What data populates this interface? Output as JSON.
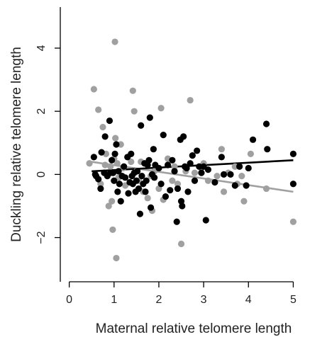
{
  "chart_data": {
    "type": "scatter",
    "title": "",
    "xlabel": "Maternal relative telomere length",
    "ylabel": "Duckling relative telomere length",
    "xlim": [
      -0.2,
      5.5
    ],
    "ylim": [
      -3.4,
      5.3
    ],
    "x_ticks": [
      0,
      1,
      2,
      3,
      4,
      5
    ],
    "y_ticks": [
      -2,
      0,
      2,
      4
    ],
    "grid": false,
    "legend": "none",
    "series": [
      {
        "color": "#000000",
        "points": [
          [
            0.55,
            0.55
          ],
          [
            0.58,
            0.0
          ],
          [
            0.6,
            -0.05
          ],
          [
            0.65,
            -0.15
          ],
          [
            0.7,
            -0.45
          ],
          [
            0.72,
            0.7
          ],
          [
            0.78,
            0.05
          ],
          [
            0.8,
            1.2
          ],
          [
            0.85,
            -0.05
          ],
          [
            0.9,
            1.7
          ],
          [
            0.92,
            0.05
          ],
          [
            0.95,
            0.45
          ],
          [
            0.98,
            0.05
          ],
          [
            1.0,
            -0.2
          ],
          [
            1.02,
            0.65
          ],
          [
            1.05,
            0.95
          ],
          [
            1.08,
            -0.55
          ],
          [
            1.1,
            0.1
          ],
          [
            1.12,
            -0.3
          ],
          [
            1.15,
            -0.85
          ],
          [
            1.18,
            -0.05
          ],
          [
            1.22,
            0.25
          ],
          [
            1.25,
            -0.1
          ],
          [
            1.3,
            0.55
          ],
          [
            1.32,
            -0.6
          ],
          [
            1.35,
            -0.25
          ],
          [
            1.38,
            0.65
          ],
          [
            1.4,
            -0.05
          ],
          [
            1.42,
            -0.3
          ],
          [
            1.45,
            0.05
          ],
          [
            1.48,
            -0.55
          ],
          [
            1.5,
            -0.2
          ],
          [
            1.52,
            0.1
          ],
          [
            1.55,
            -0.45
          ],
          [
            1.58,
            -1.25
          ],
          [
            1.6,
            1.55
          ],
          [
            1.62,
            -0.05
          ],
          [
            1.65,
            -0.3
          ],
          [
            1.68,
            0.35
          ],
          [
            1.7,
            -0.55
          ],
          [
            1.72,
            -0.2
          ],
          [
            1.75,
            0.3
          ],
          [
            1.78,
            0.45
          ],
          [
            1.8,
            1.8
          ],
          [
            1.82,
            -1.05
          ],
          [
            1.85,
            0.0
          ],
          [
            1.88,
            0.8
          ],
          [
            1.9,
            -0.1
          ],
          [
            1.92,
            0.3
          ],
          [
            2.0,
            0.2
          ],
          [
            2.05,
            -0.3
          ],
          [
            2.1,
            1.25
          ],
          [
            2.15,
            -0.7
          ],
          [
            2.2,
            0.3
          ],
          [
            2.25,
            -0.5
          ],
          [
            2.3,
            0.45
          ],
          [
            2.35,
            0.1
          ],
          [
            2.4,
            -1.5
          ],
          [
            2.42,
            -0.45
          ],
          [
            2.48,
            1.1
          ],
          [
            2.5,
            -0.85
          ],
          [
            2.52,
            -1.0
          ],
          [
            2.55,
            1.2
          ],
          [
            2.58,
            0.25
          ],
          [
            2.62,
            0.2
          ],
          [
            2.65,
            -0.55
          ],
          [
            2.7,
            0.35
          ],
          [
            2.75,
            0.6
          ],
          [
            2.8,
            -0.2
          ],
          [
            2.85,
            0.75
          ],
          [
            2.9,
            0.25
          ],
          [
            2.95,
            0.05
          ],
          [
            3.0,
            0.25
          ],
          [
            3.05,
            -1.45
          ],
          [
            3.1,
            0.15
          ],
          [
            3.25,
            -0.25
          ],
          [
            3.4,
            0.55
          ],
          [
            3.45,
            0.0
          ],
          [
            3.6,
            0.0
          ],
          [
            3.7,
            -0.35
          ],
          [
            3.8,
            0.25
          ],
          [
            3.95,
            -0.35
          ],
          [
            4.0,
            0.2
          ],
          [
            4.1,
            1.1
          ],
          [
            4.4,
            1.6
          ],
          [
            4.42,
            0.8
          ],
          [
            5.0,
            0.65
          ],
          [
            5.0,
            -0.3
          ]
        ],
        "trend": [
          [
            0.5,
            0.1
          ],
          [
            5.0,
            0.45
          ]
        ]
      },
      {
        "color": "#a0a0a0",
        "points": [
          [
            0.45,
            0.35
          ],
          [
            0.55,
            2.7
          ],
          [
            0.65,
            2.05
          ],
          [
            0.7,
            -0.3
          ],
          [
            0.75,
            1.5
          ],
          [
            0.8,
            0.3
          ],
          [
            0.82,
            0.65
          ],
          [
            0.85,
            0.0
          ],
          [
            0.88,
            -1.0
          ],
          [
            0.92,
            0.25
          ],
          [
            0.95,
            -0.85
          ],
          [
            0.97,
            -1.75
          ],
          [
            1.0,
            0.5
          ],
          [
            1.02,
            4.2
          ],
          [
            1.03,
            1.15
          ],
          [
            1.05,
            -2.65
          ],
          [
            1.07,
            0.35
          ],
          [
            1.1,
            -0.1
          ],
          [
            1.15,
            0.95
          ],
          [
            1.2,
            0.2
          ],
          [
            1.25,
            -0.35
          ],
          [
            1.3,
            0.55
          ],
          [
            1.38,
            0.4
          ],
          [
            1.42,
            2.65
          ],
          [
            1.45,
            2.0
          ],
          [
            1.5,
            0.1
          ],
          [
            1.55,
            -0.2
          ],
          [
            1.6,
            0.4
          ],
          [
            1.65,
            -0.55
          ],
          [
            1.75,
            -0.75
          ],
          [
            1.82,
            -0.05
          ],
          [
            1.85,
            -1.15
          ],
          [
            1.9,
            0.1
          ],
          [
            2.0,
            -0.45
          ],
          [
            2.05,
            2.1
          ],
          [
            2.1,
            -0.8
          ],
          [
            2.2,
            0.5
          ],
          [
            2.3,
            -0.2
          ],
          [
            2.35,
            0.25
          ],
          [
            2.42,
            -0.3
          ],
          [
            2.5,
            -2.2
          ],
          [
            2.6,
            0.1
          ],
          [
            2.7,
            2.35
          ],
          [
            2.8,
            0.05
          ],
          [
            2.95,
            0.2
          ],
          [
            3.0,
            0.35
          ],
          [
            3.1,
            -0.2
          ],
          [
            3.3,
            -0.05
          ],
          [
            3.4,
            0.8
          ],
          [
            3.45,
            -0.55
          ],
          [
            3.55,
            0.05
          ],
          [
            3.7,
            0.25
          ],
          [
            3.75,
            -0.3
          ],
          [
            3.85,
            -0.05
          ],
          [
            3.9,
            -0.85
          ],
          [
            4.05,
            0.65
          ],
          [
            4.4,
            -0.45
          ],
          [
            5.0,
            -1.5
          ]
        ],
        "trend": [
          [
            0.5,
            0.4
          ],
          [
            5.0,
            -0.55
          ]
        ]
      }
    ]
  }
}
